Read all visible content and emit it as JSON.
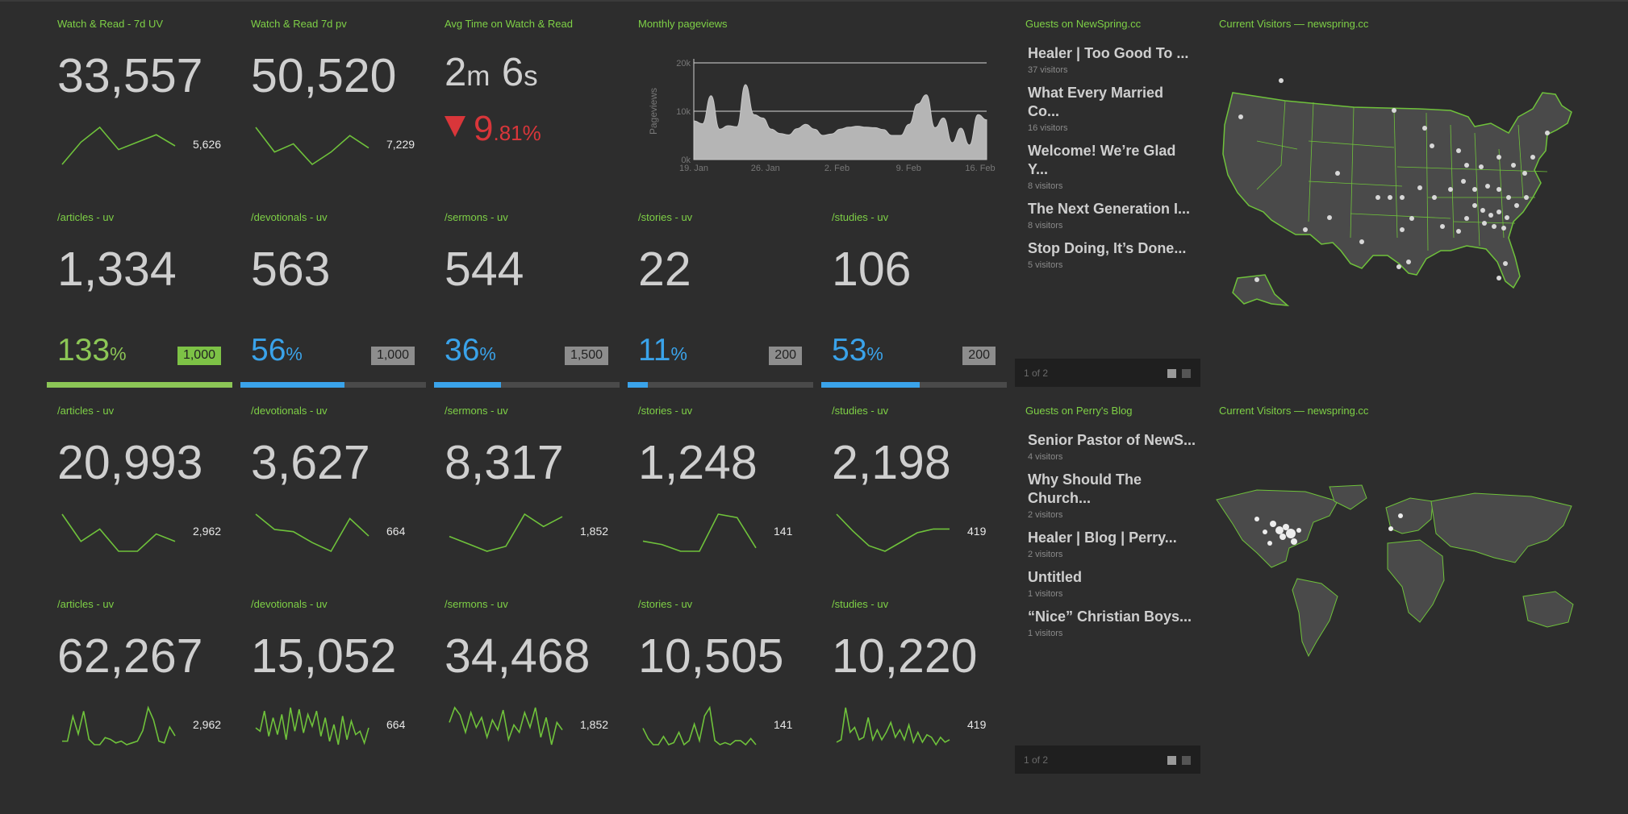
{
  "colors": {
    "background": "#2d2d2d",
    "label": "#7ed046",
    "number": "#cfcfcf",
    "sparkline": "#6fc23b",
    "blue": "#3aa3ea",
    "green": "#8cc656",
    "red": "#d9363a",
    "goal_badge": "#8d8d8d"
  },
  "top_row": {
    "uv": {
      "label": "Watch & Read - 7d UV",
      "value": "33,557",
      "spark_value": "5,626",
      "spark": [
        16,
        22,
        26,
        20,
        22,
        24,
        21
      ]
    },
    "pv": {
      "label": "Watch & Read 7d pv",
      "value": "50,520",
      "spark_value": "7,229",
      "spark": [
        28,
        22,
        24,
        19,
        22,
        26,
        23
      ]
    },
    "avg_time": {
      "label": "Avg Time on Watch & Read",
      "minutes": "2",
      "m_unit": "m",
      "seconds": "6",
      "s_unit": "s",
      "change_int": "9",
      "change_dec": ".81%"
    }
  },
  "chart_data": {
    "type": "area",
    "title": "Monthly pageviews",
    "ylabel": "Pageviews",
    "xlabel": "",
    "x_ticks": [
      "19. Jan",
      "26. Jan",
      "2. Feb",
      "9. Feb",
      "16. Feb"
    ],
    "y_ticks": [
      "0k",
      "10k",
      "20k"
    ],
    "ylim": [
      0,
      20000
    ],
    "grid": true,
    "series": [
      {
        "values": [
          8000,
          7400,
          13200,
          6300,
          7000,
          6800,
          15500,
          9300,
          8600,
          6300,
          5400,
          5100,
          6400,
          7300,
          6300,
          5000,
          5300,
          6300,
          6700,
          6900,
          6700,
          6600,
          6200,
          5000,
          5000,
          7300,
          11500,
          13400,
          6600,
          8600,
          3500,
          6500,
          3000,
          9300,
          8200
        ]
      }
    ]
  },
  "uv_row": [
    {
      "label": "/articles - uv",
      "value": "1,334",
      "pct": "133",
      "pct_unit": "%",
      "goal": "1,000",
      "fill": 1.0,
      "color": "green"
    },
    {
      "label": "/devotionals - uv",
      "value": "563",
      "pct": "56",
      "pct_unit": "%",
      "goal": "1,000",
      "fill": 0.56,
      "color": "blue"
    },
    {
      "label": "/sermons - uv",
      "value": "544",
      "pct": "36",
      "pct_unit": "%",
      "goal": "1,500",
      "fill": 0.36,
      "color": "blue"
    },
    {
      "label": "/stories - uv",
      "value": "22",
      "pct": "11",
      "pct_unit": "%",
      "goal": "200",
      "fill": 0.11,
      "color": "blue"
    },
    {
      "label": "/studies - uv",
      "value": "106",
      "pct": "53",
      "pct_unit": "%",
      "goal": "200",
      "fill": 0.53,
      "color": "blue"
    }
  ],
  "week_row": [
    {
      "label": "/articles - uv",
      "value": "20,993",
      "spark_value": "2,962",
      "spark": [
        33,
        22,
        27,
        18,
        18,
        25,
        22
      ]
    },
    {
      "label": "/devotionals - uv",
      "value": "3,627",
      "spark_value": "664",
      "spark": [
        35,
        28,
        27,
        22,
        18,
        33,
        25
      ]
    },
    {
      "label": "/sermons - uv",
      "value": "8,317",
      "spark_value": "1,852",
      "spark": [
        22,
        19,
        16,
        18,
        31,
        26,
        30
      ]
    },
    {
      "label": "/stories - uv",
      "value": "1,248",
      "spark_value": "141",
      "spark": [
        18,
        17,
        15,
        15,
        26,
        25,
        16
      ]
    },
    {
      "label": "/studies - uv",
      "value": "2,198",
      "spark_value": "419",
      "spark": [
        38,
        29,
        21,
        18,
        23,
        28,
        30,
        30
      ]
    }
  ],
  "month_row": [
    {
      "label": "/articles - uv",
      "value": "62,267",
      "spark_value": "2,962",
      "spark": [
        14,
        14,
        28,
        18,
        31,
        15,
        12,
        12,
        16,
        15,
        13,
        14,
        12,
        13,
        14,
        20,
        33,
        26,
        14,
        13,
        22,
        17
      ]
    },
    {
      "label": "/devotionals - uv",
      "value": "15,052",
      "spark_value": "664",
      "spark": [
        22,
        20,
        32,
        17,
        28,
        18,
        30,
        15,
        34,
        20,
        33,
        19,
        30,
        23,
        32,
        17,
        28,
        14,
        24,
        12,
        29,
        15,
        26,
        18,
        20,
        13,
        22
      ]
    },
    {
      "label": "/sermons - uv",
      "value": "34,468",
      "spark_value": "1,852",
      "spark": [
        24,
        30,
        27,
        20,
        28,
        22,
        26,
        18,
        25,
        21,
        29,
        17,
        23,
        20,
        28,
        22,
        30,
        18,
        26,
        15,
        24,
        21
      ]
    },
    {
      "label": "/stories - uv",
      "value": "10,505",
      "spark_value": "141",
      "spark": [
        20,
        15,
        12,
        12,
        16,
        12,
        13,
        18,
        12,
        14,
        22,
        14,
        26,
        30,
        14,
        12,
        13,
        12,
        14,
        14,
        12,
        15,
        12
      ]
    },
    {
      "label": "/studies - uv",
      "value": "10,220",
      "spark_value": "419",
      "spark": [
        14,
        15,
        28,
        18,
        20,
        15,
        16,
        24,
        15,
        19,
        15,
        18,
        22,
        16,
        19,
        15,
        21,
        14,
        18,
        14,
        17,
        16,
        13,
        16,
        14,
        15
      ]
    }
  ],
  "guests_newspring": {
    "label": "Guests on NewSpring.cc",
    "items": [
      {
        "title": "Healer | Too Good To ...",
        "visitors": "37 visitors"
      },
      {
        "title": "What Every Married Co...",
        "visitors": "16 visitors"
      },
      {
        "title": "Welcome! We’re Glad Y...",
        "visitors": "8 visitors"
      },
      {
        "title": "The Next Generation I...",
        "visitors": "8 visitors"
      },
      {
        "title": "Stop Doing, It’s Done...",
        "visitors": "5 visitors"
      }
    ],
    "pager": "1 of 2"
  },
  "guests_perry": {
    "label": "Guests on Perry's Blog",
    "items": [
      {
        "title": "Senior Pastor of NewS...",
        "visitors": "4 visitors"
      },
      {
        "title": "Why Should The Church...",
        "visitors": "2 visitors"
      },
      {
        "title": "Healer | Blog | Perry...",
        "visitors": "2 visitors"
      },
      {
        "title": "Untitled",
        "visitors": "1 visitors"
      },
      {
        "title": "“Nice” Christian Boys...",
        "visitors": "1 visitors"
      }
    ],
    "pager": "1 of 2"
  },
  "map_us": {
    "label": "Current Visitors — newspring.cc"
  },
  "map_world": {
    "label": "Current Visitors — newspring.cc"
  }
}
